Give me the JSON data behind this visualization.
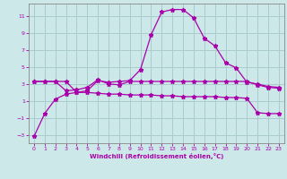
{
  "bg_color": "#cce8e8",
  "grid_color": "#aacccc",
  "line_color": "#aa00aa",
  "xlabel": "Windchill (Refroidissement éolien,°C)",
  "xlim": [
    -0.5,
    23.5
  ],
  "ylim": [
    -4.0,
    12.5
  ],
  "xticks": [
    0,
    1,
    2,
    3,
    4,
    5,
    6,
    7,
    8,
    9,
    10,
    11,
    12,
    13,
    14,
    15,
    16,
    17,
    18,
    19,
    20,
    21,
    22,
    23
  ],
  "yticks": [
    -3,
    -1,
    1,
    3,
    5,
    7,
    9,
    11
  ],
  "line1_x": [
    0,
    1,
    2,
    3,
    4,
    5,
    6,
    7,
    8,
    9,
    10,
    11,
    12,
    13,
    14,
    15,
    16,
    17,
    18,
    19,
    20,
    21,
    22,
    23
  ],
  "line1_y": [
    -3.2,
    -0.5,
    1.2,
    1.8,
    2.0,
    2.0,
    1.9,
    1.8,
    1.8,
    1.7,
    1.7,
    1.7,
    1.6,
    1.6,
    1.5,
    1.5,
    1.5,
    1.5,
    1.4,
    1.4,
    1.3,
    -0.4,
    -0.5,
    -0.5
  ],
  "line2_x": [
    0,
    1,
    2,
    3,
    4,
    5,
    6,
    7,
    8,
    9,
    10,
    11,
    12,
    13,
    14,
    15,
    16,
    17,
    18,
    19,
    20,
    21,
    22,
    23
  ],
  "line2_y": [
    3.3,
    3.3,
    3.3,
    3.3,
    2.0,
    2.2,
    3.4,
    3.2,
    3.3,
    3.4,
    4.7,
    8.8,
    11.5,
    11.8,
    11.8,
    10.8,
    8.4,
    7.5,
    5.5,
    4.9,
    3.2,
    3.0,
    2.7,
    2.6
  ],
  "line3_x": [
    0,
    1,
    2,
    3,
    4,
    5,
    6,
    7,
    8,
    9,
    10,
    11,
    12,
    13,
    14,
    15,
    16,
    17,
    18,
    19,
    20,
    21,
    22,
    23
  ],
  "line3_y": [
    3.3,
    3.3,
    3.3,
    2.2,
    2.3,
    2.6,
    3.5,
    3.0,
    2.9,
    3.3,
    3.3,
    3.3,
    3.3,
    3.3,
    3.3,
    3.3,
    3.3,
    3.3,
    3.3,
    3.3,
    3.3,
    2.9,
    2.6,
    2.5
  ]
}
